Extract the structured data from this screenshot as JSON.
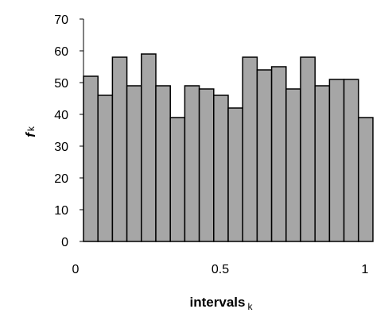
{
  "chart_data": {
    "type": "bar",
    "ylabel": "f",
    "ylabel_subscript": "k",
    "xlabel": "intervals",
    "xlabel_subscript": "k",
    "ylim": [
      0,
      70
    ],
    "yticks": [
      0,
      10,
      20,
      30,
      40,
      50,
      60,
      70
    ],
    "xlim": [
      0,
      1
    ],
    "xtick_labels": [
      "0",
      "0.5",
      "1"
    ],
    "xtick_values": [
      0,
      0.5,
      1
    ],
    "bin_width": 0.05,
    "bin_starts": [
      0,
      0.05,
      0.1,
      0.15,
      0.2,
      0.25,
      0.3,
      0.35,
      0.4,
      0.45,
      0.5,
      0.55,
      0.6,
      0.65,
      0.7,
      0.75,
      0.8,
      0.85,
      0.9,
      0.95
    ],
    "values": [
      52,
      46,
      58,
      49,
      59,
      49,
      39,
      49,
      48,
      46,
      42,
      58,
      54,
      55,
      48,
      58,
      49,
      51,
      51,
      39
    ],
    "grid": false,
    "legend": "none",
    "bar_color": "#a6a6a6",
    "bar_edge_color": "#000000"
  }
}
